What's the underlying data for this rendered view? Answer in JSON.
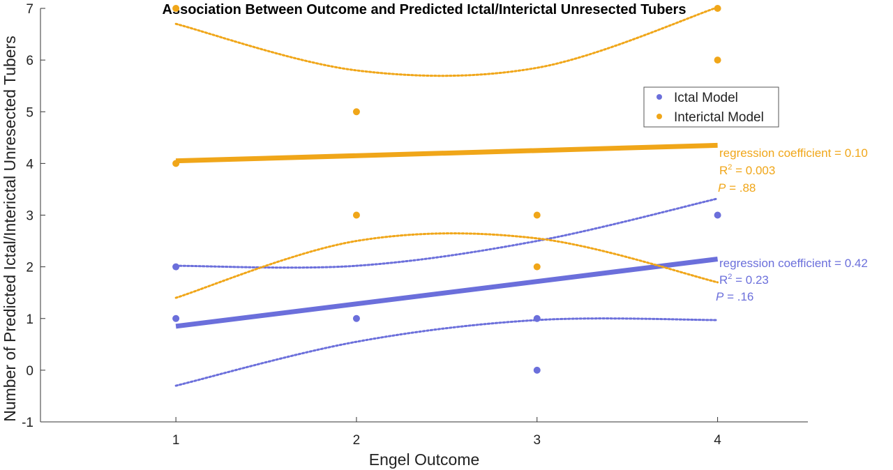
{
  "chart_data": {
    "type": "scatter",
    "title": "Association Between Outcome and Predicted Ictal/Interictal Unresected Tubers",
    "xlabel": "Engel Outcome",
    "ylabel": "Number of Predicted Ictal/Interictal Unresected Tubers",
    "xlim": [
      0.25,
      4.5
    ],
    "ylim": [
      -1,
      7
    ],
    "xticks": [
      "1",
      "2",
      "3",
      "4"
    ],
    "yticks": [
      "-1",
      "0",
      "1",
      "2",
      "3",
      "4",
      "5",
      "6",
      "7"
    ],
    "legend_position": "right",
    "series": [
      {
        "name": "Ictal Model",
        "color": "#6b6fdb",
        "points": [
          [
            1,
            2
          ],
          [
            1,
            1
          ],
          [
            2,
            1
          ],
          [
            3,
            1
          ],
          [
            3,
            0
          ],
          [
            4,
            3
          ]
        ],
        "fit_line": [
          [
            1,
            0.85
          ],
          [
            4,
            2.15
          ]
        ],
        "ci_lower": [
          [
            1,
            -0.3
          ],
          [
            2,
            0.55
          ],
          [
            3,
            0.97
          ],
          [
            4,
            0.97
          ]
        ],
        "ci_upper": [
          [
            1,
            2.02
          ],
          [
            2,
            2.02
          ],
          [
            3,
            2.5
          ],
          [
            4,
            3.32
          ]
        ],
        "annotation": {
          "coef": "regression coefficient = 0.42",
          "r2_prefix": "R",
          "r2_sup": "2",
          "r2_value": " = 0.23",
          "p_italic": "P",
          "p_value": " = .16"
        }
      },
      {
        "name": "Interictal Model",
        "color": "#f0a619",
        "points": [
          [
            1,
            7
          ],
          [
            1,
            4
          ],
          [
            2,
            5
          ],
          [
            2,
            3
          ],
          [
            3,
            3
          ],
          [
            3,
            2
          ],
          [
            4,
            7
          ],
          [
            4,
            6
          ]
        ],
        "fit_line": [
          [
            1,
            4.05
          ],
          [
            4,
            4.35
          ]
        ],
        "ci_lower": [
          [
            1,
            1.4
          ],
          [
            2,
            2.5
          ],
          [
            3,
            2.55
          ],
          [
            4,
            1.7
          ]
        ],
        "ci_upper": [
          [
            1,
            6.7
          ],
          [
            2,
            5.8
          ],
          [
            3,
            5.85
          ],
          [
            4,
            7.02
          ]
        ],
        "annotation": {
          "coef": "regression coefficient = 0.10",
          "r2_prefix": "R",
          "r2_sup": "2",
          "r2_value": " = 0.003",
          "p_italic": "P",
          "p_value": " = .88"
        }
      }
    ]
  }
}
